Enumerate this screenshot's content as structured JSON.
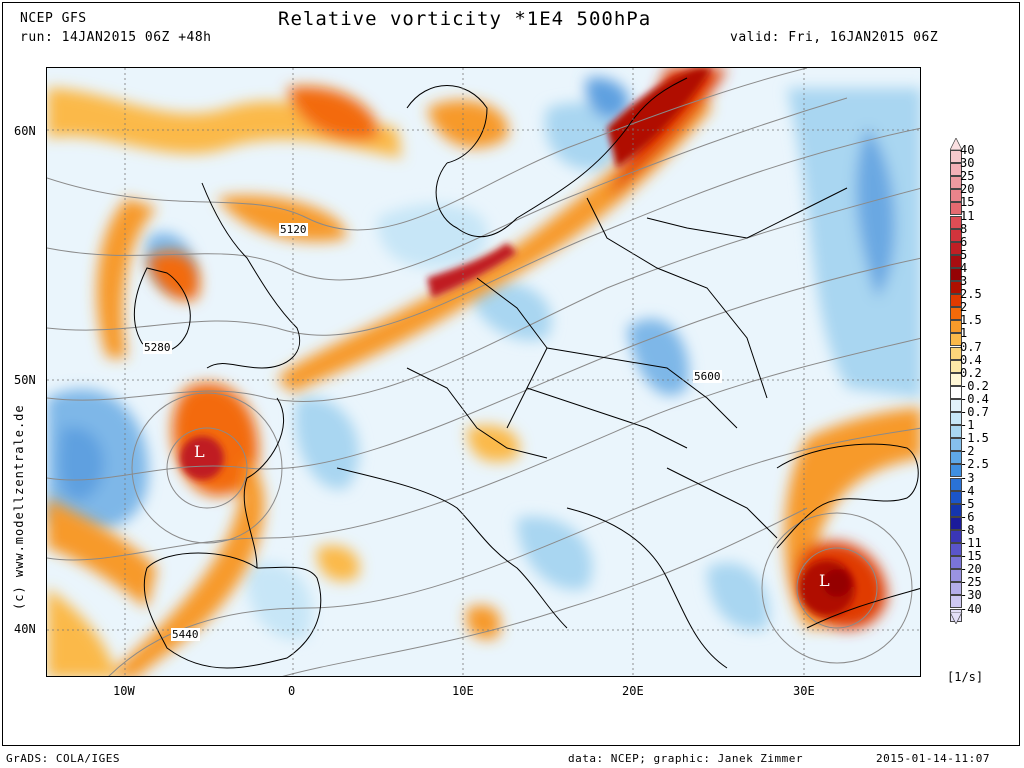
{
  "header": {
    "model": "NCEP GFS",
    "run": "run: 14JAN2015 06Z +48h",
    "title": "Relative vorticity *1E4 500hPa",
    "valid": "valid: Fri, 16JAN2015 06Z"
  },
  "map": {
    "lat_labels": [
      "60N",
      "50N",
      "40N"
    ],
    "lon_labels": [
      "10W",
      "0",
      "10E",
      "20E",
      "30E"
    ],
    "contour_labels": [
      "5120",
      "5280",
      "5440",
      "5600"
    ],
    "low_markers": [
      "L",
      "L"
    ],
    "watermark": "(c)  www.modellzentrale.de"
  },
  "colorbar": {
    "unit": "[1/s]",
    "levels": [
      {
        "label": "40",
        "color": "#f6c9cc"
      },
      {
        "label": "30",
        "color": "#f2b0b6"
      },
      {
        "label": "25",
        "color": "#ee9aa0"
      },
      {
        "label": "20",
        "color": "#ea848b"
      },
      {
        "label": "15",
        "color": "#e46a70"
      },
      {
        "label": "11",
        "color": "#dd4d55"
      },
      {
        "label": "8",
        "color": "#d2343c"
      },
      {
        "label": "6",
        "color": "#c01f24"
      },
      {
        "label": "5",
        "color": "#a80c10"
      },
      {
        "label": "4",
        "color": "#950204"
      },
      {
        "label": "3",
        "color": "#b01000"
      },
      {
        "label": "2.5",
        "color": "#e03a00"
      },
      {
        "label": "2",
        "color": "#f36a0a"
      },
      {
        "label": "1.5",
        "color": "#f79a2a"
      },
      {
        "label": "1",
        "color": "#fbb94a"
      },
      {
        "label": "0.7",
        "color": "#fdd57a"
      },
      {
        "label": "0.4",
        "color": "#fde9a8"
      },
      {
        "label": "0.2",
        "color": "#fff7d6"
      },
      {
        "label": "-0.2",
        "color": "#ffffff"
      },
      {
        "label": "-0.4",
        "color": "#e2f2fb"
      },
      {
        "label": "-0.7",
        "color": "#c7e6f7"
      },
      {
        "label": "-1",
        "color": "#a9d6f1"
      },
      {
        "label": "-1.5",
        "color": "#86c0ec"
      },
      {
        "label": "-2",
        "color": "#5fa8e6"
      },
      {
        "label": "-2.5",
        "color": "#3f8fe0"
      },
      {
        "label": "-3",
        "color": "#2a72d6"
      },
      {
        "label": "-4",
        "color": "#1b55c8"
      },
      {
        "label": "-5",
        "color": "#1435ae"
      },
      {
        "label": "-6",
        "color": "#1a1a9a"
      },
      {
        "label": "-8",
        "color": "#3a36b6"
      },
      {
        "label": "-11",
        "color": "#5a55ca"
      },
      {
        "label": "-15",
        "color": "#7a74d8"
      },
      {
        "label": "-20",
        "color": "#9a93e2"
      },
      {
        "label": "-25",
        "color": "#b5aee9"
      },
      {
        "label": "-30",
        "color": "#cdc7f1"
      },
      {
        "label": "-40",
        "color": "#e3dff8"
      }
    ]
  },
  "footer": {
    "left": "GrADS: COLA/IGES",
    "center": "data: NCEP; graphic: Janek Zimmer",
    "right": "2015-01-14-11:07"
  }
}
